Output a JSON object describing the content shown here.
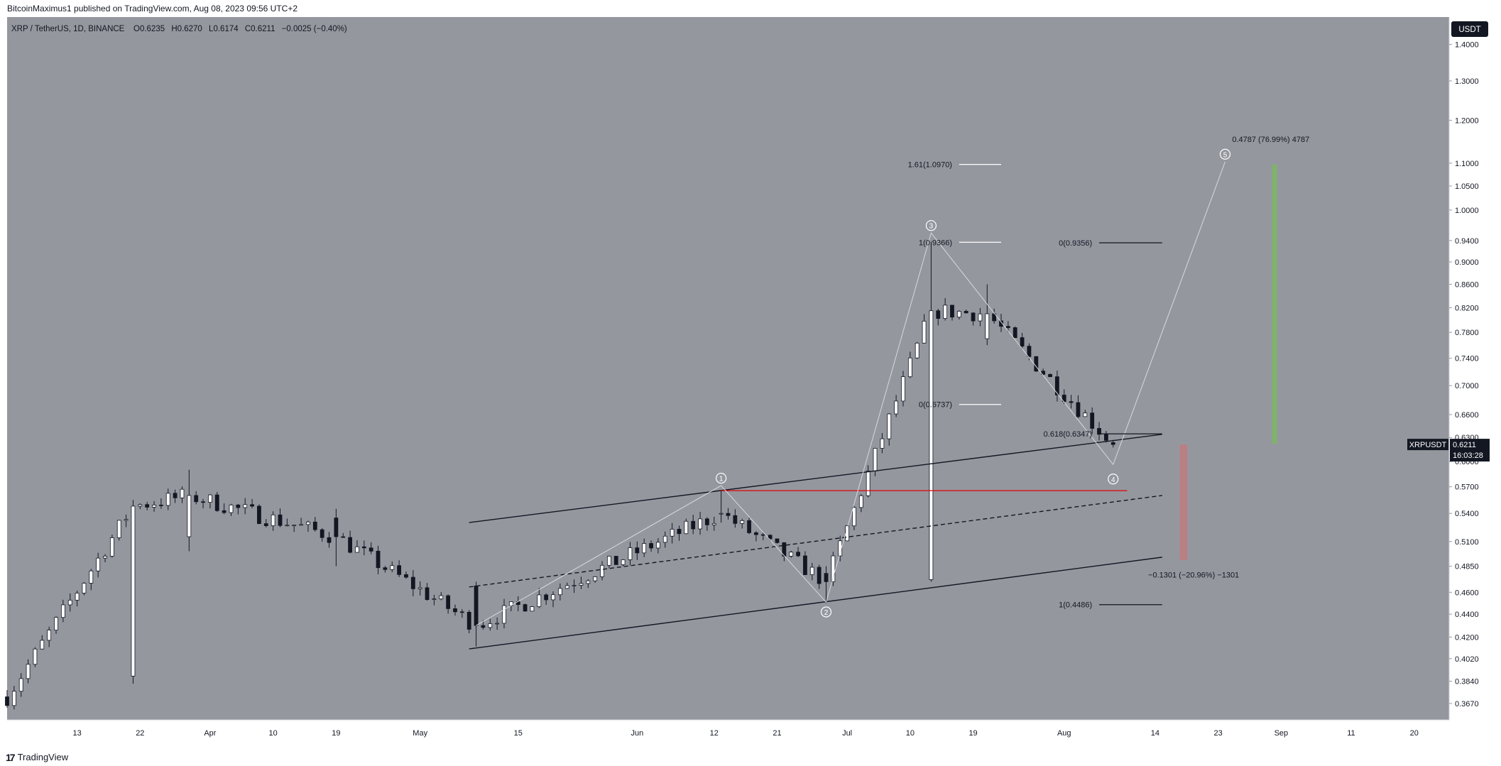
{
  "header": {
    "publish_text": "BitcoinMaximus1 published on TradingView.com, Aug 08, 2023 09:56 UTC+2"
  },
  "footer": {
    "brand": "TradingView",
    "brand_mark": "17"
  },
  "colors": {
    "background": "#95979f",
    "bull_candle": "#ffffff",
    "bear_candle": "#131722",
    "resistance": "#e00000",
    "target_bar": "#7fb26a",
    "risk_bar": "#b98083"
  },
  "chart_data": {
    "type": "candlestick",
    "symbol_line": "XRP / TetherUS, 1D, BINANCE",
    "ohlc_labels": {
      "o": "O",
      "o_val": "0.6235",
      "h": "H",
      "h_val": "0.6270",
      "l": "L",
      "l_val": "0.6174",
      "c": "C",
      "c_val": "0.6211",
      "change": "−0.0025 (−0.40%)"
    },
    "currency_button": "USDT",
    "price_tag": {
      "ticker": "XRPUSDT",
      "price": "0.6211",
      "countdown": "16:03:28"
    },
    "y_scale": "log",
    "y_range": [
      0.355,
      1.48
    ],
    "y_ticks": [
      "1.4000",
      "1.3000",
      "1.2000",
      "1.1000",
      "1.0500",
      "1.0000",
      "0.9400",
      "0.9000",
      "0.8600",
      "0.8200",
      "0.7800",
      "0.7400",
      "0.7000",
      "0.6600",
      "0.6300",
      "0.6000",
      "0.5700",
      "0.5400",
      "0.5100",
      "0.4850",
      "0.4600",
      "0.4400",
      "0.4200",
      "0.4020",
      "0.3840",
      "0.3670"
    ],
    "x_range": [
      "2023-03-03",
      "2023-09-25"
    ],
    "x_ticks": [
      {
        "date": "2023-03-13",
        "label": "13"
      },
      {
        "date": "2023-03-22",
        "label": "22"
      },
      {
        "date": "2023-04-01",
        "label": "Apr"
      },
      {
        "date": "2023-04-10",
        "label": "10"
      },
      {
        "date": "2023-04-19",
        "label": "19"
      },
      {
        "date": "2023-05-01",
        "label": "May"
      },
      {
        "date": "2023-05-15",
        "label": "15"
      },
      {
        "date": "2023-06-01",
        "label": "Jun"
      },
      {
        "date": "2023-06-12",
        "label": "12"
      },
      {
        "date": "2023-06-21",
        "label": "21"
      },
      {
        "date": "2023-07-01",
        "label": "Jul"
      },
      {
        "date": "2023-07-10",
        "label": "10"
      },
      {
        "date": "2023-07-19",
        "label": "19"
      },
      {
        "date": "2023-08-01",
        "label": "Aug"
      },
      {
        "date": "2023-08-14",
        "label": "14"
      },
      {
        "date": "2023-08-23",
        "label": "23"
      },
      {
        "date": "2023-09-01",
        "label": "Sep"
      },
      {
        "date": "2023-09-11",
        "label": "11"
      },
      {
        "date": "2023-09-20",
        "label": "20"
      }
    ],
    "key_candles": [
      {
        "date": "2023-03-21",
        "o": 0.388,
        "h": 0.555,
        "l": 0.382,
        "c": 0.548
      },
      {
        "date": "2023-03-29",
        "o": 0.515,
        "h": 0.59,
        "l": 0.5,
        "c": 0.56
      },
      {
        "date": "2023-04-19",
        "o": 0.535,
        "h": 0.545,
        "l": 0.485,
        "c": 0.515
      },
      {
        "date": "2023-05-09",
        "o": 0.466,
        "h": 0.47,
        "l": 0.412,
        "c": 0.43
      },
      {
        "date": "2023-06-13",
        "o": 0.54,
        "h": 0.565,
        "l": 0.53,
        "c": 0.54
      },
      {
        "date": "2023-06-28",
        "o": 0.478,
        "h": 0.485,
        "l": 0.45,
        "c": 0.47
      },
      {
        "date": "2023-07-13",
        "o": 0.472,
        "h": 0.938,
        "l": 0.47,
        "c": 0.815
      },
      {
        "date": "2023-07-21",
        "o": 0.77,
        "h": 0.86,
        "l": 0.76,
        "c": 0.81
      },
      {
        "date": "2023-08-08",
        "o": 0.6235,
        "h": 0.627,
        "l": 0.6174,
        "c": 0.6211
      }
    ],
    "channel": {
      "upper": [
        {
          "date": "2023-05-08",
          "price": 0.53
        },
        {
          "date": "2023-08-15",
          "price": 0.634
        }
      ],
      "middle": [
        {
          "date": "2023-05-08",
          "price": 0.465
        },
        {
          "date": "2023-08-15",
          "price": 0.56
        }
      ],
      "lower": [
        {
          "date": "2023-05-08",
          "price": 0.41
        },
        {
          "date": "2023-08-15",
          "price": 0.494
        }
      ]
    },
    "resistance_line": {
      "from": "2023-06-13",
      "to": "2023-08-10",
      "price": 0.5655
    },
    "wave_labels": [
      {
        "label": "1",
        "date": "2023-06-13",
        "price": 0.58
      },
      {
        "label": "2",
        "date": "2023-06-28",
        "price": 0.442
      },
      {
        "label": "3",
        "date": "2023-07-13",
        "price": 0.969
      },
      {
        "label": "4",
        "date": "2023-08-08",
        "price": 0.579
      },
      {
        "label": "5",
        "date": "2023-08-24",
        "price": 1.12
      }
    ],
    "fib_levels_left": [
      {
        "text": "1.61(1.0970)",
        "price": 1.097
      },
      {
        "text": "1(0.9366)",
        "price": 0.9366
      },
      {
        "text": "0(0.6737)",
        "price": 0.6737
      }
    ],
    "fib_levels_right": [
      {
        "text": "0(0.9356)",
        "price": 0.9356
      },
      {
        "text": "0.618(0.6347)",
        "price": 0.6347
      },
      {
        "text": "1(0.4486)",
        "price": 0.4486
      }
    ],
    "target_label": "0.4787 (76.99%) 4787",
    "risk_label": "−0.1301 (−20.96%) −1301",
    "target_bar": {
      "date": "2023-08-31",
      "from": 0.622,
      "to": 1.097
    },
    "risk_bar": {
      "date": "2023-08-18",
      "from": 0.621,
      "to": 0.491
    }
  }
}
